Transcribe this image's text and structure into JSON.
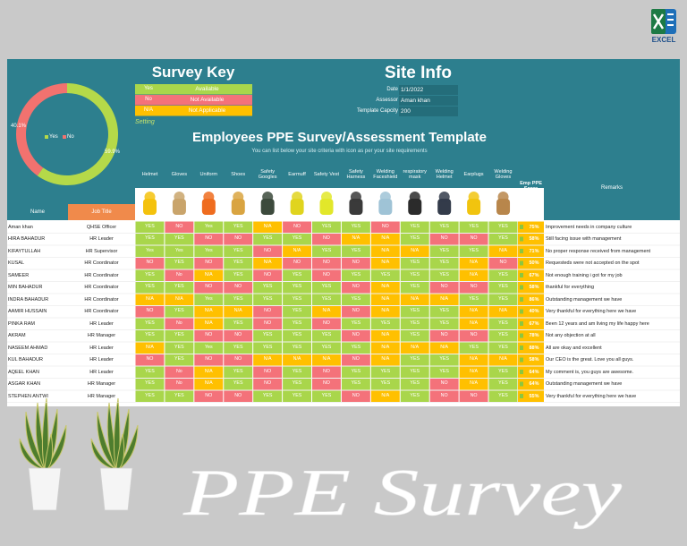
{
  "app_badge": "EXCEL",
  "donut": {
    "series": [
      {
        "name": "Yes",
        "color": "#b5d949",
        "value": 59.9,
        "value_label": "59.9%"
      },
      {
        "name": "No",
        "color": "#f2726f",
        "value": 40.1,
        "value_label": "40.1%"
      }
    ]
  },
  "survey_key": {
    "title": "Survey Key",
    "rows": [
      {
        "code": "Yes",
        "meaning": "Available",
        "color": "#a9d64b"
      },
      {
        "code": "No",
        "meaning": "Not Available",
        "color": "#f4727a"
      },
      {
        "code": "N/A",
        "meaning": "Not Applicable",
        "color": "#ffc000"
      }
    ],
    "setting": "Setting"
  },
  "site_info": {
    "title": "Site Info",
    "fields": [
      {
        "label": "Date",
        "value": "1/1/2022"
      },
      {
        "label": "Assessor",
        "value": "Aman khan"
      },
      {
        "label": "Template Capcity",
        "value": "200"
      }
    ]
  },
  "template": {
    "title": "Employees PPE Survey/Assessment Template",
    "subtitle": "You can list below your site criteria with icon as per your site requirements",
    "name_header": "Name",
    "job_header": "Job Title",
    "ppe_columns": [
      "Helmet",
      "Gloves",
      "Uniform",
      "Shoes",
      "Safety Googles",
      "Earmuff",
      "Safety Vest",
      "Safety Harness",
      "Welding Faceshield",
      "respiratory mask",
      "Welding Helmet",
      "Earplugs",
      "Welding Gloves"
    ],
    "score_header": "Emp PPE Score",
    "remarks_header": "Remarks",
    "rows": [
      {
        "name": "Aman khan",
        "job": "QHSE Officer",
        "answers": [
          "YES",
          "NO",
          "Yes",
          "YES",
          "N/A",
          "NO",
          "YES",
          "YES",
          "NO",
          "YES",
          "YES",
          "YES",
          "YES"
        ],
        "score": "75%",
        "remarks": "Improvement needs in company culture"
      },
      {
        "name": "HIRA BAHADUR",
        "job": "HR Leader",
        "answers": [
          "YES",
          "YES",
          "NO",
          "NO",
          "YES",
          "YES",
          "NO",
          "N/A",
          "N/A",
          "YES",
          "NO",
          "NO",
          "YES"
        ],
        "score": "58%",
        "remarks": "Still facing issue with management"
      },
      {
        "name": "KIFAYTULLAH",
        "job": "HR Supervisor",
        "answers": [
          "Yes",
          "Yes",
          "Yes",
          "YES",
          "NO",
          "N/A",
          "YES",
          "YES",
          "N/A",
          "N/A",
          "YES",
          "YES",
          "N/A"
        ],
        "score": "71%",
        "remarks": "No proper response received from management"
      },
      {
        "name": "KUSAL",
        "job": "HR Coordinator",
        "answers": [
          "NO",
          "YES",
          "NO",
          "YES",
          "N/A",
          "NO",
          "NO",
          "NO",
          "N/A",
          "YES",
          "YES",
          "N/A",
          "NO"
        ],
        "score": "50%",
        "remarks": "Requesteds were not accepted on the spot"
      },
      {
        "name": "SAMEER",
        "job": "HR Coordinator",
        "answers": [
          "YES",
          "No",
          "N/A",
          "YES",
          "NO",
          "YES",
          "NO",
          "YES",
          "YES",
          "YES",
          "YES",
          "N/A",
          "YES"
        ],
        "score": "67%",
        "remarks": "Not enough training i got for my job"
      },
      {
        "name": "MIN BAHADUR",
        "job": "HR Coordinator",
        "answers": [
          "YES",
          "YES",
          "NO",
          "NO",
          "YES",
          "YES",
          "YES",
          "NO",
          "N/A",
          "YES",
          "NO",
          "NO",
          "YES"
        ],
        "score": "58%",
        "remarks": "thankful for everything"
      },
      {
        "name": "INDRA BAHADUR",
        "job": "HR Coordinator",
        "answers": [
          "N/A",
          "N/A",
          "Yes",
          "YES",
          "YES",
          "YES",
          "YES",
          "YES",
          "N/A",
          "N/A",
          "N/A",
          "YES",
          "YES"
        ],
        "score": "86%",
        "remarks": "Outstanding management we have"
      },
      {
        "name": "AAMIR HUSSAIN",
        "job": "HR Coordinator",
        "answers": [
          "NO",
          "YES",
          "N/A",
          "N/A",
          "NO",
          "YES",
          "N/A",
          "NO",
          "N/A",
          "YES",
          "YES",
          "N/A",
          "N/A"
        ],
        "score": "40%",
        "remarks": "Very thankful for everything here we have"
      },
      {
        "name": "PINKA RAM",
        "job": "HR Leader",
        "answers": [
          "YES",
          "No",
          "N/A",
          "YES",
          "NO",
          "YES",
          "NO",
          "YES",
          "YES",
          "YES",
          "YES",
          "N/A",
          "YES"
        ],
        "score": "67%",
        "remarks": "Been 12 years and am living my life happy here"
      },
      {
        "name": "AKRAM",
        "job": "HR Manager",
        "answers": [
          "YES",
          "YES",
          "NO",
          "NO",
          "YES",
          "YES",
          "YES",
          "NO",
          "N/A",
          "YES",
          "NO",
          "NO",
          "YES"
        ],
        "score": "78%",
        "remarks": "Not any objection at all"
      },
      {
        "name": "NASEEM AHMAD",
        "job": "HR Leader",
        "answers": [
          "N/A",
          "YES",
          "Yes",
          "YES",
          "YES",
          "YES",
          "YES",
          "YES",
          "N/A",
          "N/A",
          "N/A",
          "YES",
          "YES"
        ],
        "score": "88%",
        "remarks": "All are okay and excellent"
      },
      {
        "name": "KUL BAHADUR",
        "job": "HR Leader",
        "answers": [
          "NO",
          "YES",
          "NO",
          "NO",
          "N/A",
          "N/A",
          "N/A",
          "NO",
          "N/A",
          "YES",
          "YES",
          "N/A",
          "N/A"
        ],
        "score": "58%",
        "remarks": "Our CEO is the great. Love you all guys."
      },
      {
        "name": "AQEEL KHAN",
        "job": "HR Leader",
        "answers": [
          "YES",
          "No",
          "N/A",
          "YES",
          "NO",
          "YES",
          "NO",
          "YES",
          "YES",
          "YES",
          "YES",
          "N/A",
          "YES"
        ],
        "score": "64%",
        "remarks": "My comment is, you guys are awesome."
      },
      {
        "name": "ASGAR KHAN",
        "job": "HR Manager",
        "answers": [
          "YES",
          "No",
          "N/A",
          "YES",
          "NO",
          "YES",
          "NO",
          "YES",
          "YES",
          "YES",
          "NO",
          "N/A",
          "YES"
        ],
        "score": "64%",
        "remarks": "Outstanding management we have"
      },
      {
        "name": "STEPHEN ANTWI",
        "job": "HR Manager",
        "answers": [
          "YES",
          "YES",
          "NO",
          "NO",
          "YES",
          "YES",
          "YES",
          "NO",
          "N/A",
          "YES",
          "NO",
          "NO",
          "YES"
        ],
        "score": "55%",
        "remarks": "Very thankful for everything here we have"
      }
    ]
  },
  "footer_title": "PPE Survey"
}
